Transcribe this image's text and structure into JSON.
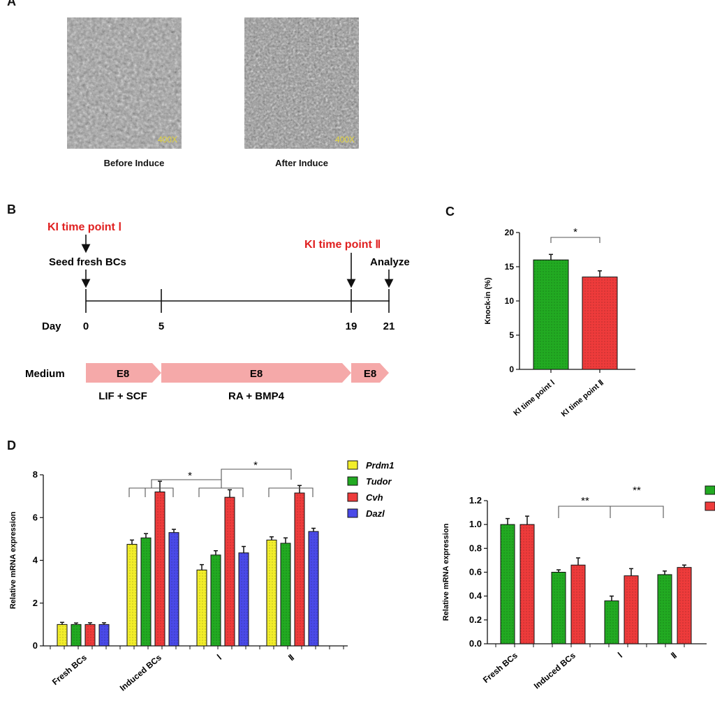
{
  "panel_labels": {
    "a": "A",
    "b": "B",
    "c": "C",
    "d": "D"
  },
  "panel_a": {
    "images": [
      {
        "magnification": "400X",
        "caption": "Before Induce"
      },
      {
        "magnification": "400X",
        "caption": "After Induce"
      }
    ]
  },
  "panel_b": {
    "ki_point_1": "KI time point Ⅰ",
    "ki_point_2": "KI time point Ⅱ",
    "seed_label": "Seed fresh BCs",
    "analyze_label": "Analyze",
    "day_label": "Day",
    "days": [
      "0",
      "5",
      "19",
      "21"
    ],
    "medium_label": "Medium",
    "medium_segments": [
      "E8",
      "E8",
      "E8"
    ],
    "supplements": [
      "LIF + SCF",
      "RA + BMP4"
    ],
    "colors": {
      "highlight": "#e02020",
      "medium": "#f5a9a9"
    }
  },
  "chart_data": [
    {
      "type": "bar",
      "panel": "C",
      "ylabel": "Knock-in (%)",
      "categories": [
        "KI time point Ⅰ",
        "KI time point Ⅱ"
      ],
      "values": [
        16.0,
        13.5
      ],
      "errors": [
        0.8,
        0.9
      ],
      "colors": [
        "#22aa22",
        "#ee3b3b"
      ],
      "ylim": [
        0,
        20
      ],
      "yticks": [
        "0",
        "5",
        "10",
        "15",
        "20"
      ],
      "annotations": [
        "*"
      ]
    },
    {
      "type": "bar",
      "panel": "D-left",
      "ylabel": "Relative mRNA expression",
      "categories": [
        "Fresh BCs",
        "Induced BCs",
        "Ⅰ",
        "Ⅱ"
      ],
      "series": [
        {
          "name": "Prdm1",
          "color": "#f2ee2a",
          "values": [
            1.0,
            4.75,
            3.55,
            4.95
          ],
          "errors": [
            0.1,
            0.2,
            0.25,
            0.15
          ]
        },
        {
          "name": "Tudor",
          "color": "#22aa22",
          "values": [
            1.0,
            5.05,
            4.25,
            4.8
          ],
          "errors": [
            0.07,
            0.2,
            0.2,
            0.25
          ]
        },
        {
          "name": "Cvh",
          "color": "#ee3b3b",
          "values": [
            1.0,
            7.2,
            6.95,
            7.15
          ],
          "errors": [
            0.08,
            0.5,
            0.35,
            0.35
          ]
        },
        {
          "name": "Dazl",
          "color": "#4a4ae8",
          "values": [
            1.0,
            5.3,
            4.35,
            5.35
          ],
          "errors": [
            0.08,
            0.15,
            0.3,
            0.15
          ]
        }
      ],
      "ylim": [
        0,
        8
      ],
      "yticks": [
        "0",
        "2",
        "4",
        "6",
        "8"
      ],
      "annotations": [
        "*",
        "*"
      ]
    },
    {
      "type": "bar",
      "panel": "D-right",
      "ylabel": "Relative mRNA expression",
      "categories": [
        "Fresh BCs",
        "Induced BCs",
        "Ⅰ",
        "Ⅱ"
      ],
      "series": [
        {
          "color": "#22aa22",
          "values": [
            1.0,
            0.6,
            0.36,
            0.58
          ],
          "errors": [
            0.05,
            0.02,
            0.04,
            0.03
          ]
        },
        {
          "color": "#ee3b3b",
          "values": [
            1.0,
            0.66,
            0.57,
            0.64
          ],
          "errors": [
            0.07,
            0.06,
            0.06,
            0.02
          ]
        }
      ],
      "ylim": [
        0,
        1.2
      ],
      "yticks": [
        "0.0",
        "0.2",
        "0.4",
        "0.6",
        "0.8",
        "1.0",
        "1.2"
      ],
      "annotations": [
        "**",
        "**"
      ]
    }
  ]
}
